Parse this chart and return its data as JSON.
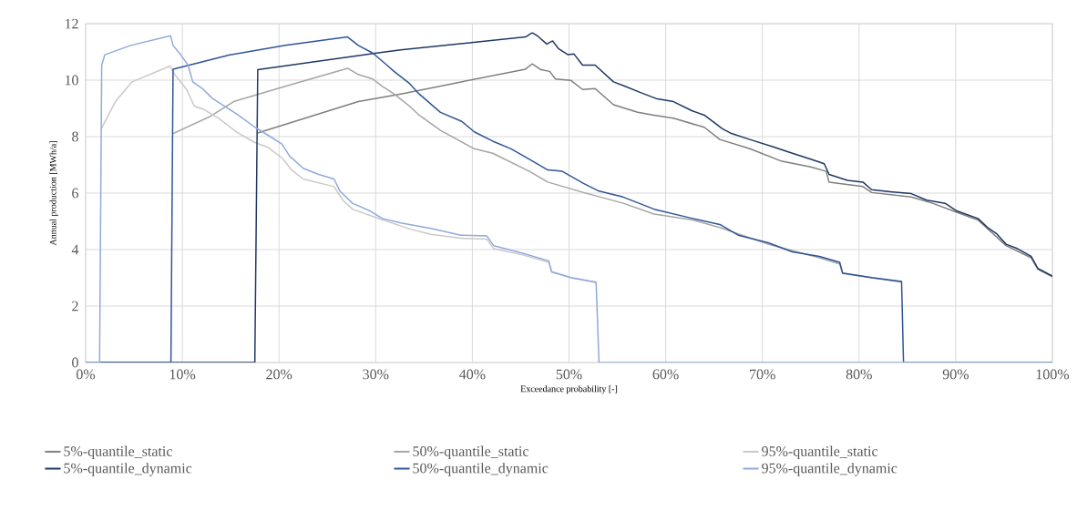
{
  "chart_data": {
    "type": "line",
    "xlabel": "Exceedance probability [-]",
    "ylabel": "Annual production [MWh/a]",
    "xlim": [
      0,
      100
    ],
    "ylim": [
      0,
      12
    ],
    "xticks": [
      {
        "value": 0,
        "label": "0%"
      },
      {
        "value": 10,
        "label": "10%"
      },
      {
        "value": 20,
        "label": "20%"
      },
      {
        "value": 30,
        "label": "30%"
      },
      {
        "value": 40,
        "label": "40%"
      },
      {
        "value": 50,
        "label": "50%"
      },
      {
        "value": 60,
        "label": "60%"
      },
      {
        "value": 70,
        "label": "70%"
      },
      {
        "value": 80,
        "label": "80%"
      },
      {
        "value": 90,
        "label": "90%"
      },
      {
        "value": 100,
        "label": "100%"
      }
    ],
    "yticks": [
      0,
      2,
      4,
      6,
      8,
      10,
      12
    ],
    "grid": true,
    "legend": "bottom",
    "marker": "none",
    "line_style": "solid",
    "series": [
      {
        "name": "5%-quantile_static",
        "color": "#7f7f7f",
        "x": [
          17.8,
          28.2,
          32.6,
          45.5,
          46.2,
          47.1,
          48.0,
          48.6,
          50.2,
          51.4,
          52.7,
          54.6,
          57.1,
          58.8,
          60.8,
          64.0,
          65.6,
          68.7,
          71.9,
          75.0,
          76.6,
          76.9,
          80.4,
          81.3,
          85.4,
          87.6,
          90.1,
          92.3,
          95.2,
          97.8,
          98.5,
          100
        ],
        "values": [
          8.13,
          9.24,
          9.51,
          10.39,
          10.58,
          10.37,
          10.31,
          10.04,
          9.99,
          9.67,
          9.7,
          9.13,
          8.86,
          8.76,
          8.65,
          8.33,
          7.9,
          7.57,
          7.14,
          6.93,
          6.77,
          6.39,
          6.23,
          6.02,
          5.86,
          5.64,
          5.32,
          5.05,
          4.14,
          3.71,
          3.3,
          3.04
        ]
      },
      {
        "name": "50%-quantile_static",
        "color": "#a5a5a5",
        "x": [
          9.04,
          12.8,
          15.3,
          20.65,
          27.1,
          28.2,
          29.7,
          30.7,
          31.9,
          33.5,
          34.5,
          36.7,
          40.2,
          42.1,
          45.9,
          47.8,
          51.5,
          55.6,
          58.8,
          62.8,
          65.6,
          70.6,
          75.9,
          78.0,
          78.3,
          81.3,
          84.4
        ],
        "values": [
          8.11,
          8.7,
          9.24,
          9.78,
          10.42,
          10.2,
          10.04,
          9.78,
          9.51,
          9.08,
          8.76,
          8.22,
          7.57,
          7.41,
          6.77,
          6.39,
          6.02,
          5.64,
          5.26,
          5.05,
          4.78,
          4.19,
          3.71,
          3.49,
          3.15,
          3.0,
          2.85
        ]
      },
      {
        "name": "95%-quantile_static",
        "color": "#c9c9c9",
        "x": [
          1.6,
          3.08,
          4.8,
          8.73,
          9.2,
          10.45,
          11.24,
          12.18,
          13.75,
          15.63,
          17.5,
          18.8,
          20.3,
          21.3,
          22.5,
          25.7,
          26.6,
          27.6,
          29.8,
          33.5,
          35.7,
          38.8,
          41.5,
          42.2,
          45.2,
          47.9,
          48.2,
          50.2,
          52.8
        ],
        "values": [
          8.27,
          9.24,
          9.94,
          10.5,
          10.2,
          9.67,
          9.08,
          8.97,
          8.65,
          8.16,
          7.79,
          7.63,
          7.25,
          6.82,
          6.5,
          6.23,
          5.75,
          5.43,
          5.16,
          4.73,
          4.54,
          4.4,
          4.37,
          4.03,
          3.81,
          3.55,
          3.2,
          3.0,
          2.83
        ]
      },
      {
        "name": "5%-quantile_dynamic",
        "color": "#203864",
        "x": [
          0,
          17.5,
          17.8,
          30.1,
          32.6,
          45.5,
          46.2,
          46.8,
          47.7,
          48.3,
          48.9,
          49.9,
          50.5,
          51.4,
          52.7,
          54.6,
          55.8,
          57.4,
          59.0,
          60.8,
          62.7,
          64.0,
          65.9,
          66.8,
          68.7,
          71.2,
          73.1,
          75.0,
          76.4,
          76.9,
          78.8,
          80.4,
          81.3,
          83.2,
          85.4,
          87.0,
          88.9,
          90.1,
          92.3,
          93.3,
          94.2,
          95.2,
          96.4,
          97.8,
          98.5,
          100
        ],
        "values": [
          0,
          0,
          10.37,
          10.96,
          11.07,
          11.53,
          11.68,
          11.55,
          11.28,
          11.39,
          11.12,
          10.9,
          10.93,
          10.53,
          10.53,
          9.94,
          9.78,
          9.56,
          9.35,
          9.24,
          8.92,
          8.76,
          8.27,
          8.11,
          7.9,
          7.63,
          7.41,
          7.2,
          7.04,
          6.66,
          6.45,
          6.39,
          6.12,
          6.05,
          5.98,
          5.75,
          5.64,
          5.37,
          5.1,
          4.78,
          4.57,
          4.19,
          4.03,
          3.76,
          3.33,
          3.06
        ]
      },
      {
        "name": "50%-quantile_dynamic",
        "color": "#2f5597",
        "x": [
          0,
          8.82,
          9.04,
          15.0,
          20.65,
          27.1,
          28.2,
          29.7,
          31.0,
          31.9,
          33.5,
          34.5,
          36.7,
          38.9,
          40.2,
          42.1,
          44.0,
          45.9,
          47.8,
          49.3,
          51.5,
          53.1,
          55.6,
          58.8,
          62.8,
          65.6,
          67.5,
          70.6,
          73.1,
          75.9,
          78.0,
          78.3,
          81.3,
          84.4,
          84.6,
          100
        ],
        "values": [
          0,
          0,
          10.39,
          10.9,
          11.23,
          11.53,
          11.23,
          10.96,
          10.58,
          10.31,
          9.88,
          9.51,
          8.86,
          8.54,
          8.17,
          7.84,
          7.57,
          7.2,
          6.82,
          6.77,
          6.34,
          6.07,
          5.86,
          5.43,
          5.1,
          4.89,
          4.51,
          4.24,
          3.92,
          3.76,
          3.55,
          3.17,
          3.01,
          2.87,
          0,
          0
        ]
      },
      {
        "name": "95%-quantile_dynamic",
        "color": "#8faadc",
        "x": [
          0,
          1.44,
          1.66,
          1.98,
          4.65,
          8.79,
          9.04,
          9.82,
          10.6,
          11.08,
          12.18,
          13.12,
          14.38,
          15.79,
          17.52,
          19.1,
          20.3,
          21.1,
          22.5,
          24.1,
          25.7,
          26.3,
          27.6,
          29.4,
          30.7,
          32.6,
          35.7,
          38.8,
          41.5,
          42.2,
          45.2,
          47.9,
          48.2,
          50.2,
          52.8,
          53.1,
          100
        ],
        "values": [
          0,
          0,
          10.53,
          10.9,
          11.23,
          11.57,
          11.23,
          10.9,
          10.53,
          9.94,
          9.67,
          9.35,
          9.08,
          8.76,
          8.33,
          8.0,
          7.74,
          7.31,
          6.88,
          6.66,
          6.5,
          6.07,
          5.64,
          5.37,
          5.1,
          4.94,
          4.75,
          4.51,
          4.48,
          4.14,
          3.87,
          3.6,
          3.22,
          3.01,
          2.85,
          0,
          0
        ]
      }
    ]
  }
}
